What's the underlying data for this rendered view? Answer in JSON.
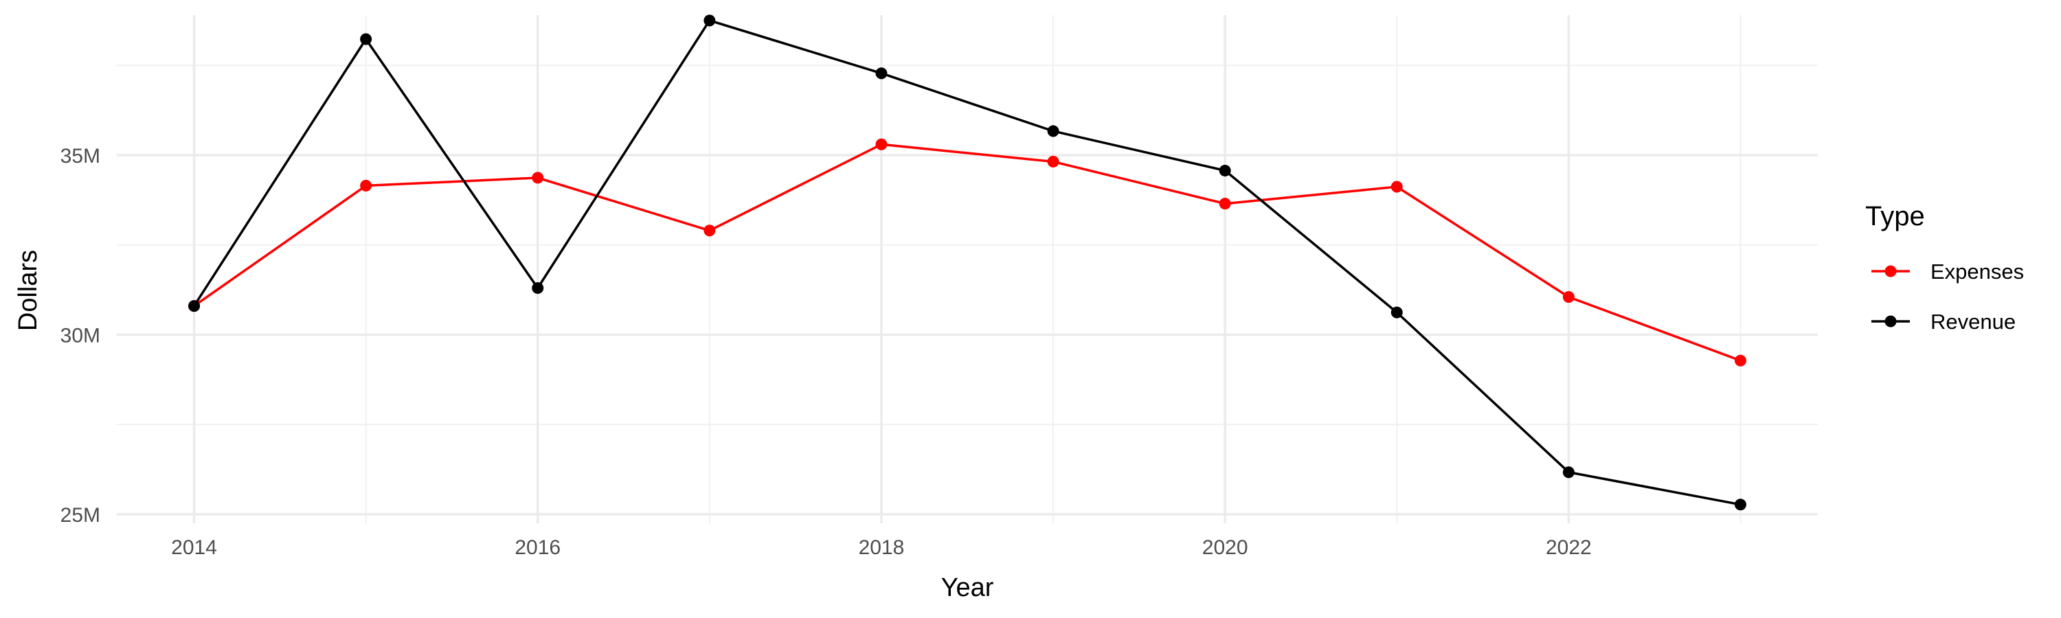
{
  "chart_data": {
    "type": "line",
    "title": "",
    "xlabel": "Year",
    "ylabel": "Dollars",
    "x": [
      2014,
      2015,
      2016,
      2017,
      2018,
      2019,
      2020,
      2021,
      2022,
      2023
    ],
    "xlim": [
      2013.55,
      2023.45
    ],
    "ylim": [
      24.75,
      38.9
    ],
    "x_ticks": [
      2014,
      2016,
      2018,
      2020,
      2022
    ],
    "x_tick_labels": [
      "2014",
      "2016",
      "2018",
      "2020",
      "2022"
    ],
    "y_ticks": [
      25,
      30,
      35
    ],
    "y_tick_labels": [
      "25M",
      "30M",
      "35M"
    ],
    "y_unit": "millions of dollars",
    "grid": true,
    "legend": {
      "title": "Type",
      "position": "right"
    },
    "series": [
      {
        "name": "Expenses",
        "color": "#ff0000",
        "values": [
          30.8,
          34.15,
          34.37,
          32.9,
          35.3,
          34.82,
          33.65,
          34.12,
          31.05,
          29.28
        ]
      },
      {
        "name": "Revenue",
        "color": "#000000",
        "values": [
          30.8,
          38.23,
          31.3,
          38.75,
          37.28,
          35.67,
          34.57,
          30.62,
          26.17,
          25.27
        ]
      }
    ]
  }
}
